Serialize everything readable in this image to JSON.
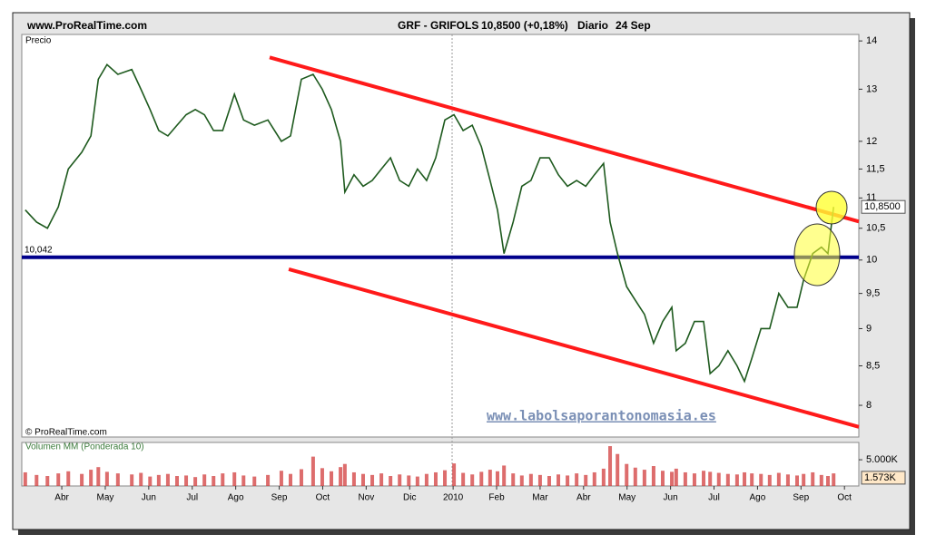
{
  "header": {
    "site": "www.ProRealTime.com",
    "symbol": "GRF - GRIFOLS",
    "quote": "10,8500 (+0,18%)",
    "period": "Diario",
    "date": "24 Sep"
  },
  "chart_data": [
    {
      "type": "line",
      "y_label": "Precio",
      "credit": "© ProRealTime.com",
      "watermark": "www.labolsaporantonomasia.es",
      "log_scale": true,
      "xlim": [
        -0.92,
        18.33
      ],
      "ylim": [
        7.62,
        14.14
      ],
      "yticks": [
        14,
        13,
        12,
        {
          "value": 11.5,
          "label": "11,5"
        },
        11,
        {
          "value": 10.5,
          "label": "10,5"
        },
        10,
        {
          "value": 9.5,
          "label": "9,5"
        },
        9,
        {
          "value": 8.5,
          "label": "8,5"
        },
        8
      ],
      "last_value": 10.85,
      "last_value_label": "10,8500",
      "support_line": {
        "value": 10.042,
        "label": "10,042",
        "color": "#00008b"
      },
      "trendlines": [
        {
          "color": "#ff1a1a",
          "x": [
            4.78,
            18.33
          ],
          "values": [
            13.65,
            10.61
          ]
        },
        {
          "color": "#ff1a1a",
          "x": [
            5.22,
            18.33
          ],
          "values": [
            9.86,
            7.74
          ]
        }
      ],
      "series": [
        {
          "color": "#1e5a1e",
          "x": [
            -0.84,
            -0.58,
            -0.33,
            -0.08,
            0.15,
            0.46,
            0.67,
            0.84,
            1.04,
            1.29,
            1.61,
            1.82,
            2.03,
            2.23,
            2.44,
            2.65,
            2.86,
            3.07,
            3.28,
            3.49,
            3.7,
            3.97,
            4.18,
            4.43,
            4.74,
            5.05,
            5.26,
            5.51,
            5.78,
            5.99,
            6.2,
            6.41,
            6.51,
            6.72,
            6.93,
            7.14,
            7.35,
            7.56,
            7.77,
            7.98,
            8.18,
            8.39,
            8.6,
            8.81,
            9.02,
            9.23,
            9.44,
            9.65,
            9.85,
            10.02,
            10.17,
            10.38,
            10.58,
            10.79,
            11.0,
            11.21,
            11.42,
            11.63,
            11.84,
            12.05,
            12.25,
            12.46,
            12.61,
            12.78,
            12.99,
            13.19,
            13.4,
            13.61,
            13.82,
            14.03,
            14.13,
            14.34,
            14.55,
            14.76,
            14.91,
            15.11,
            15.32,
            15.53,
            15.7,
            15.87,
            16.08,
            16.28,
            16.49,
            16.7,
            16.91,
            17.06,
            17.27,
            17.47,
            17.62,
            17.75
          ],
          "values": [
            10.8,
            10.6,
            10.5,
            10.85,
            11.5,
            11.8,
            12.1,
            13.2,
            13.5,
            13.3,
            13.4,
            13.0,
            12.6,
            12.2,
            12.1,
            12.3,
            12.5,
            12.6,
            12.5,
            12.2,
            12.2,
            12.9,
            12.4,
            12.3,
            12.4,
            12.0,
            12.1,
            13.2,
            13.3,
            13.0,
            12.6,
            12.0,
            11.1,
            11.4,
            11.2,
            11.3,
            11.5,
            11.7,
            11.3,
            11.2,
            11.5,
            11.3,
            11.7,
            12.4,
            12.5,
            12.2,
            12.3,
            11.9,
            11.3,
            10.8,
            10.1,
            10.6,
            11.2,
            11.3,
            11.7,
            11.7,
            11.4,
            11.2,
            11.3,
            11.2,
            11.4,
            11.6,
            10.6,
            10.1,
            9.6,
            9.4,
            9.2,
            8.8,
            9.1,
            9.3,
            8.7,
            8.8,
            9.1,
            9.1,
            8.4,
            8.5,
            8.7,
            8.5,
            8.3,
            8.6,
            9.0,
            9.0,
            9.5,
            9.3,
            9.3,
            9.7,
            10.1,
            10.2,
            10.1,
            10.85
          ]
        }
      ]
    },
    {
      "type": "bar",
      "y_label": "Volumen MM (Ponderada 10)",
      "xlim": [
        -0.92,
        18.33
      ],
      "ylim": [
        0,
        8300
      ],
      "yticks": [
        {
          "value": 5000,
          "label": "5.000K"
        }
      ],
      "last_value": 1573,
      "last_value_label": "1.573K",
      "xticks": [
        {
          "value": 0,
          "label": "Abr"
        },
        {
          "value": 1,
          "label": "May"
        },
        {
          "value": 2,
          "label": "Jun"
        },
        {
          "value": 3,
          "label": "Jul"
        },
        {
          "value": 4,
          "label": "Ago"
        },
        {
          "value": 5,
          "label": "Sep"
        },
        {
          "value": 6,
          "label": "Oct"
        },
        {
          "value": 7,
          "label": "Nov"
        },
        {
          "value": 8,
          "label": "Dic"
        },
        {
          "value": 9,
          "label": "2010"
        },
        {
          "value": 10,
          "label": "Feb"
        },
        {
          "value": 11,
          "label": "Mar"
        },
        {
          "value": 12,
          "label": "Abr"
        },
        {
          "value": 13,
          "label": "May"
        },
        {
          "value": 14,
          "label": "Jun"
        },
        {
          "value": 15,
          "label": "Jul"
        },
        {
          "value": 16,
          "label": "Ago"
        },
        {
          "value": 17,
          "label": "Sep"
        },
        {
          "value": 18,
          "label": "Oct"
        }
      ],
      "series": [
        {
          "color": "#d23c3c",
          "x": [
            -0.84,
            -0.58,
            -0.33,
            -0.08,
            0.15,
            0.46,
            0.67,
            0.84,
            1.04,
            1.29,
            1.61,
            1.82,
            2.03,
            2.23,
            2.44,
            2.65,
            2.86,
            3.07,
            3.28,
            3.49,
            3.7,
            3.97,
            4.18,
            4.43,
            4.74,
            5.05,
            5.26,
            5.51,
            5.78,
            5.99,
            6.2,
            6.41,
            6.51,
            6.72,
            6.93,
            7.14,
            7.35,
            7.56,
            7.77,
            7.98,
            8.18,
            8.39,
            8.6,
            8.81,
            9.02,
            9.23,
            9.44,
            9.65,
            9.85,
            10.02,
            10.17,
            10.38,
            10.58,
            10.79,
            11.0,
            11.21,
            11.42,
            11.63,
            11.84,
            12.05,
            12.25,
            12.46,
            12.61,
            12.78,
            12.99,
            13.19,
            13.4,
            13.61,
            13.82,
            14.03,
            14.13,
            14.34,
            14.55,
            14.76,
            14.91,
            15.11,
            15.32,
            15.53,
            15.7,
            15.87,
            16.08,
            16.28,
            16.49,
            16.7,
            16.91,
            17.06,
            17.27,
            17.47,
            17.62,
            17.75
          ],
          "values": [
            2600,
            2100,
            1900,
            2400,
            2800,
            2300,
            3100,
            3600,
            2700,
            2400,
            2200,
            2500,
            1800,
            2100,
            2300,
            1900,
            2000,
            1700,
            2200,
            1900,
            2400,
            2600,
            2000,
            1800,
            2100,
            2900,
            2300,
            3200,
            5600,
            3400,
            2800,
            3600,
            4200,
            2600,
            2300,
            2100,
            2400,
            1900,
            2200,
            2000,
            1800,
            2300,
            2600,
            3000,
            4300,
            2500,
            2200,
            2700,
            3100,
            2800,
            3900,
            2400,
            2000,
            2300,
            2100,
            1900,
            2200,
            2000,
            2400,
            2100,
            2600,
            3300,
            7600,
            6100,
            4200,
            3500,
            3100,
            3800,
            2900,
            2700,
            3300,
            2600,
            2400,
            2900,
            2700,
            2500,
            2300,
            2200,
            2600,
            2400,
            2300,
            2100,
            2500,
            2200,
            2000,
            2300,
            2600,
            2100,
            1900,
            2400
          ]
        }
      ]
    }
  ]
}
